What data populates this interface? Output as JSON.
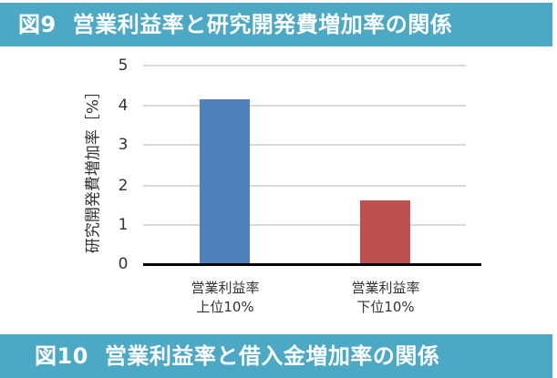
{
  "figure9": {
    "number": "図9",
    "title": "営業利益率と研究開発費増加率の関係"
  },
  "figure10": {
    "number": "図10",
    "title": "営業利益率と借入金増加率の関係"
  },
  "colors": {
    "banner": "#4ba9c6",
    "bar_top10": "#4f81bd",
    "bar_bottom10": "#c0504d",
    "gridline": "#d9d9d9"
  },
  "chart_data": {
    "type": "bar",
    "title": "図9 営業利益率と研究開発費増加率の関係",
    "categories": [
      "営業利益率\n上位10%",
      "営業利益率\n下位10%"
    ],
    "category_lines": [
      [
        "営業利益率",
        "上位10%"
      ],
      [
        "営業利益率",
        "下位10%"
      ]
    ],
    "values": [
      4.15,
      1.6
    ],
    "bar_colors": [
      "#4f81bd",
      "#c0504d"
    ],
    "xlabel": "",
    "ylabel": "研究開発費増加率［%］",
    "ylim": [
      0,
      5
    ],
    "yticks": [
      "0",
      "1",
      "2",
      "3",
      "4",
      "5"
    ],
    "grid": true,
    "legend": "none"
  }
}
